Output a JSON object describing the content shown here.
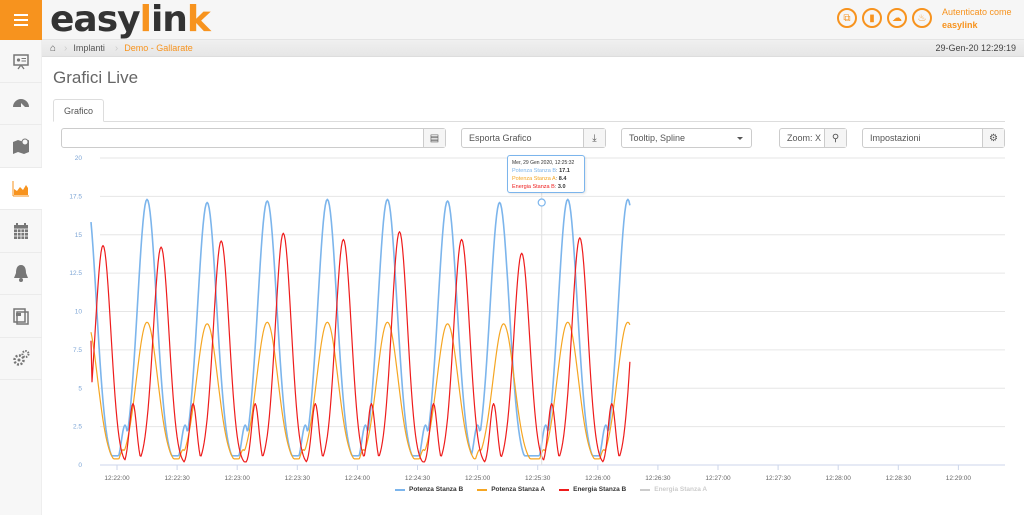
{
  "header": {
    "menu_icon": "hamburger-icon",
    "logo": {
      "part1": "easy",
      "part2": "l",
      "part3": "in",
      "part4": "k"
    },
    "icons": [
      "copy-icon",
      "file-icon",
      "cloud-icon",
      "bell-icon"
    ],
    "auth_label": "Autenticato come",
    "auth_user": "easylink"
  },
  "breadcrumb": {
    "home_icon": "home-icon",
    "items": [
      "Implanti",
      "Demo - Gallarate"
    ],
    "datetime": "29-Gen-20 12:29:19"
  },
  "sidebar": {
    "items": [
      {
        "name": "presentation",
        "icon": "presentation-icon",
        "active": false
      },
      {
        "name": "dashboard",
        "icon": "gauge-icon",
        "active": false
      },
      {
        "name": "map",
        "icon": "map-icon",
        "active": false
      },
      {
        "name": "charts",
        "icon": "area-chart-icon",
        "active": true
      },
      {
        "name": "calendar",
        "icon": "calendar-icon",
        "active": false
      },
      {
        "name": "alarms",
        "icon": "bell-icon",
        "active": false
      },
      {
        "name": "reports",
        "icon": "report-icon",
        "active": false
      },
      {
        "name": "settings",
        "icon": "gears-icon",
        "active": false
      }
    ]
  },
  "page": {
    "title": "Grafici Live",
    "tabs": [
      {
        "label": "Grafico",
        "active": true
      }
    ]
  },
  "toolbar": {
    "series_input": {
      "value": "",
      "icon": "bar-chart-icon"
    },
    "export": {
      "label": "Esporta Grafico",
      "icon": "download-icon"
    },
    "mode_select": {
      "value": "Tooltip, Spline"
    },
    "zoom": {
      "label": "Zoom: X",
      "icon": "zoom-in-icon"
    },
    "settings": {
      "label": "Impostazioni",
      "icon": "gears-icon"
    }
  },
  "tooltip": {
    "date": "Mer, 29 Gen 2020, 12:25:32",
    "rows": [
      {
        "name": "Potenza Stanza B",
        "value": "17.1",
        "color": "#7cb5ec"
      },
      {
        "name": "Potenza Stanza A",
        "value": "8.4",
        "color": "#f7a35c"
      },
      {
        "name": "Energia Stanza B",
        "value": "3.0",
        "color": "#ff0000"
      }
    ]
  },
  "colors": {
    "accent": "#f7931e",
    "series_b_power": "#7cb5ec",
    "series_a_power": "#f5a623",
    "series_b_energy": "#ee1c1c",
    "series_a_energy_hidden": "#cccccc"
  },
  "chart_data": {
    "type": "line",
    "title": "",
    "xlabel": "",
    "ylabel": "",
    "ylim": [
      0,
      20
    ],
    "yticks": [
      "0",
      "2.5",
      "5",
      "7.5",
      "10",
      "12.5",
      "15",
      "17.5",
      "20"
    ],
    "xticks": [
      "12:22:00",
      "12:22:30",
      "12:23:00",
      "12:23:30",
      "12:24:00",
      "12:24:30",
      "12:25:00",
      "12:25:30",
      "12:26:00",
      "12:26:30",
      "12:27:00",
      "12:27:30",
      "12:28:00",
      "12:28:30",
      "12:29:00"
    ],
    "x_range_seconds": [
      -13,
      256
    ],
    "period_seconds": 30,
    "grid": true,
    "legend_position": "bottom",
    "series": [
      {
        "name": "Potenza Stanza B",
        "color": "#7cb5ec",
        "visible": true,
        "peak_times_s": [
          7,
          37,
          67,
          97,
          127,
          157,
          187,
          213,
          247,
          277,
          307,
          337,
          367,
          397,
          427
        ],
        "peak_values": [
          17.3,
          17.3,
          17.1,
          17.2,
          17.3,
          17.3,
          17.2,
          17.1,
          17.3,
          17.3,
          17.3,
          17.2,
          17.1,
          17.2,
          17.3
        ],
        "trough_value": 0.5,
        "shoulder_value": 2.5
      },
      {
        "name": "Potenza Stanza A",
        "color": "#f5a623",
        "visible": true,
        "peak_times_s": [
          7,
          37,
          67,
          97,
          127,
          157,
          187,
          215,
          247,
          277,
          307,
          337,
          367,
          397,
          427
        ],
        "peak_values": [
          9.3,
          9.3,
          9.2,
          9.3,
          9.3,
          9.3,
          9.2,
          9.2,
          9.3,
          9.3,
          9.2,
          9.3,
          9.3,
          9.3,
          9.3
        ],
        "trough_value": 0.3
      },
      {
        "name": "Energia Stanza B",
        "color": "#ee1c1c",
        "visible": true,
        "peak_times_s": [
          15,
          44,
          74,
          105,
          135,
          163,
          194,
          224,
          253,
          283,
          315,
          345,
          375,
          405,
          435
        ],
        "peak_values": [
          14.3,
          14.2,
          14.6,
          15.1,
          14.7,
          15.2,
          14.7,
          13.8,
          14.8,
          15.0,
          14.9,
          14.8,
          14.2,
          14.7,
          15.2
        ],
        "secondary_peak": 4.0,
        "start_value": 8.1,
        "end_value": 1.7
      },
      {
        "name": "Energia Stanza A",
        "color": "#cccccc",
        "visible": false
      }
    ],
    "tooltip_point": {
      "time": "12:25:32",
      "Potenza Stanza B": 17.1,
      "Potenza Stanza A": 8.4,
      "Energia Stanza B": 3.0
    }
  }
}
